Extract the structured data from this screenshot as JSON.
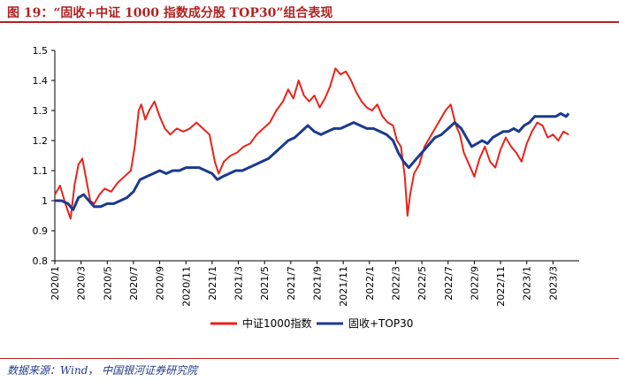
{
  "figure_title": "图 19：“固收+中证 1000 指数成分股 TOP30”组合表现",
  "source_note": "数据来源：Wind， 中国银河证券研究院",
  "colors": {
    "series_red": "#e8231a",
    "series_blue": "#1b3a8f",
    "title": "#b22222"
  },
  "chart_data": {
    "type": "line",
    "ylim": [
      0.8,
      1.5
    ],
    "y_ticks": [
      "0.8",
      "0.9",
      "1",
      "1.1",
      "1.2",
      "1.3",
      "1.4",
      "1.5"
    ],
    "x_ticks": [
      "2020/1",
      "2020/3",
      "2020/5",
      "2020/7",
      "2020/9",
      "2020/11",
      "2021/1",
      "2021/3",
      "2021/5",
      "2021/7",
      "2021/9",
      "2021/11",
      "2022/1",
      "2022/3",
      "2022/5",
      "2022/7",
      "2022/9",
      "2022/11",
      "2023/1",
      "2023/3"
    ],
    "x_range_months": [
      0,
      40
    ],
    "legend_position": "bottom",
    "series": [
      {
        "name": "中证1000指数",
        "color": "#e8231a",
        "points": [
          [
            0,
            1.02
          ],
          [
            0.4,
            1.05
          ],
          [
            0.8,
            0.99
          ],
          [
            1.2,
            0.94
          ],
          [
            1.5,
            1.05
          ],
          [
            1.8,
            1.12
          ],
          [
            2.1,
            1.14
          ],
          [
            2.4,
            1.07
          ],
          [
            2.7,
            1.0
          ],
          [
            3.0,
            0.99
          ],
          [
            3.4,
            1.02
          ],
          [
            3.8,
            1.04
          ],
          [
            4.3,
            1.03
          ],
          [
            4.8,
            1.06
          ],
          [
            5.3,
            1.08
          ],
          [
            5.8,
            1.1
          ],
          [
            6.1,
            1.18
          ],
          [
            6.4,
            1.3
          ],
          [
            6.6,
            1.32
          ],
          [
            6.9,
            1.27
          ],
          [
            7.2,
            1.3
          ],
          [
            7.6,
            1.33
          ],
          [
            8.0,
            1.28
          ],
          [
            8.4,
            1.24
          ],
          [
            8.8,
            1.22
          ],
          [
            9.3,
            1.24
          ],
          [
            9.8,
            1.23
          ],
          [
            10.3,
            1.24
          ],
          [
            10.8,
            1.26
          ],
          [
            11.3,
            1.24
          ],
          [
            11.8,
            1.22
          ],
          [
            12.2,
            1.13
          ],
          [
            12.5,
            1.09
          ],
          [
            12.9,
            1.13
          ],
          [
            13.4,
            1.15
          ],
          [
            13.9,
            1.16
          ],
          [
            14.4,
            1.18
          ],
          [
            14.9,
            1.19
          ],
          [
            15.4,
            1.22
          ],
          [
            15.9,
            1.24
          ],
          [
            16.4,
            1.26
          ],
          [
            16.9,
            1.3
          ],
          [
            17.4,
            1.33
          ],
          [
            17.8,
            1.37
          ],
          [
            18.2,
            1.34
          ],
          [
            18.6,
            1.4
          ],
          [
            19.0,
            1.35
          ],
          [
            19.4,
            1.33
          ],
          [
            19.8,
            1.35
          ],
          [
            20.2,
            1.31
          ],
          [
            20.6,
            1.34
          ],
          [
            21.0,
            1.38
          ],
          [
            21.4,
            1.44
          ],
          [
            21.8,
            1.42
          ],
          [
            22.2,
            1.43
          ],
          [
            22.6,
            1.4
          ],
          [
            23.0,
            1.36
          ],
          [
            23.4,
            1.33
          ],
          [
            23.8,
            1.31
          ],
          [
            24.2,
            1.3
          ],
          [
            24.6,
            1.32
          ],
          [
            25.0,
            1.28
          ],
          [
            25.4,
            1.26
          ],
          [
            25.8,
            1.25
          ],
          [
            26.1,
            1.2
          ],
          [
            26.4,
            1.18
          ],
          [
            26.7,
            1.08
          ],
          [
            26.9,
            0.95
          ],
          [
            27.1,
            1.02
          ],
          [
            27.4,
            1.09
          ],
          [
            27.8,
            1.12
          ],
          [
            28.2,
            1.18
          ],
          [
            28.6,
            1.21
          ],
          [
            29.0,
            1.24
          ],
          [
            29.4,
            1.27
          ],
          [
            29.8,
            1.3
          ],
          [
            30.2,
            1.32
          ],
          [
            30.6,
            1.25
          ],
          [
            30.9,
            1.22
          ],
          [
            31.2,
            1.16
          ],
          [
            31.6,
            1.12
          ],
          [
            32.0,
            1.08
          ],
          [
            32.4,
            1.14
          ],
          [
            32.8,
            1.18
          ],
          [
            33.2,
            1.13
          ],
          [
            33.6,
            1.11
          ],
          [
            34.0,
            1.17
          ],
          [
            34.4,
            1.21
          ],
          [
            34.8,
            1.18
          ],
          [
            35.2,
            1.16
          ],
          [
            35.6,
            1.13
          ],
          [
            36.0,
            1.19
          ],
          [
            36.4,
            1.23
          ],
          [
            36.8,
            1.26
          ],
          [
            37.2,
            1.25
          ],
          [
            37.6,
            1.21
          ],
          [
            38.0,
            1.22
          ],
          [
            38.4,
            1.2
          ],
          [
            38.8,
            1.23
          ],
          [
            39.2,
            1.22
          ]
        ]
      },
      {
        "name": "固收+TOP30",
        "color": "#1b3a8f",
        "points": [
          [
            0,
            1.0
          ],
          [
            0.5,
            1.0
          ],
          [
            1.0,
            0.99
          ],
          [
            1.4,
            0.97
          ],
          [
            1.8,
            1.01
          ],
          [
            2.2,
            1.02
          ],
          [
            2.6,
            1.0
          ],
          [
            3.0,
            0.98
          ],
          [
            3.5,
            0.98
          ],
          [
            4.0,
            0.99
          ],
          [
            4.5,
            0.99
          ],
          [
            5.0,
            1.0
          ],
          [
            5.5,
            1.01
          ],
          [
            6.0,
            1.03
          ],
          [
            6.5,
            1.07
          ],
          [
            7.0,
            1.08
          ],
          [
            7.5,
            1.09
          ],
          [
            8.0,
            1.1
          ],
          [
            8.5,
            1.09
          ],
          [
            9.0,
            1.1
          ],
          [
            9.5,
            1.1
          ],
          [
            10.0,
            1.11
          ],
          [
            10.5,
            1.11
          ],
          [
            11.0,
            1.11
          ],
          [
            11.5,
            1.1
          ],
          [
            12.0,
            1.09
          ],
          [
            12.4,
            1.07
          ],
          [
            12.8,
            1.08
          ],
          [
            13.3,
            1.09
          ],
          [
            13.8,
            1.1
          ],
          [
            14.3,
            1.1
          ],
          [
            14.8,
            1.11
          ],
          [
            15.3,
            1.12
          ],
          [
            15.8,
            1.13
          ],
          [
            16.3,
            1.14
          ],
          [
            16.8,
            1.16
          ],
          [
            17.3,
            1.18
          ],
          [
            17.8,
            1.2
          ],
          [
            18.3,
            1.21
          ],
          [
            18.8,
            1.23
          ],
          [
            19.3,
            1.25
          ],
          [
            19.8,
            1.23
          ],
          [
            20.3,
            1.22
          ],
          [
            20.8,
            1.23
          ],
          [
            21.3,
            1.24
          ],
          [
            21.8,
            1.24
          ],
          [
            22.3,
            1.25
          ],
          [
            22.8,
            1.26
          ],
          [
            23.3,
            1.25
          ],
          [
            23.8,
            1.24
          ],
          [
            24.3,
            1.24
          ],
          [
            24.8,
            1.23
          ],
          [
            25.3,
            1.22
          ],
          [
            25.8,
            1.2
          ],
          [
            26.2,
            1.16
          ],
          [
            26.6,
            1.13
          ],
          [
            27.0,
            1.11
          ],
          [
            27.4,
            1.13
          ],
          [
            27.8,
            1.15
          ],
          [
            28.2,
            1.17
          ],
          [
            28.6,
            1.19
          ],
          [
            29.0,
            1.21
          ],
          [
            29.5,
            1.22
          ],
          [
            30.0,
            1.24
          ],
          [
            30.5,
            1.26
          ],
          [
            31.0,
            1.24
          ],
          [
            31.4,
            1.21
          ],
          [
            31.8,
            1.18
          ],
          [
            32.2,
            1.19
          ],
          [
            32.6,
            1.2
          ],
          [
            33.0,
            1.19
          ],
          [
            33.4,
            1.21
          ],
          [
            33.8,
            1.22
          ],
          [
            34.2,
            1.23
          ],
          [
            34.6,
            1.23
          ],
          [
            35.0,
            1.24
          ],
          [
            35.4,
            1.23
          ],
          [
            35.8,
            1.25
          ],
          [
            36.2,
            1.26
          ],
          [
            36.6,
            1.28
          ],
          [
            37.0,
            1.28
          ],
          [
            37.4,
            1.28
          ],
          [
            37.8,
            1.28
          ],
          [
            38.2,
            1.28
          ],
          [
            38.6,
            1.29
          ],
          [
            39.0,
            1.28
          ],
          [
            39.2,
            1.29
          ]
        ]
      }
    ]
  }
}
